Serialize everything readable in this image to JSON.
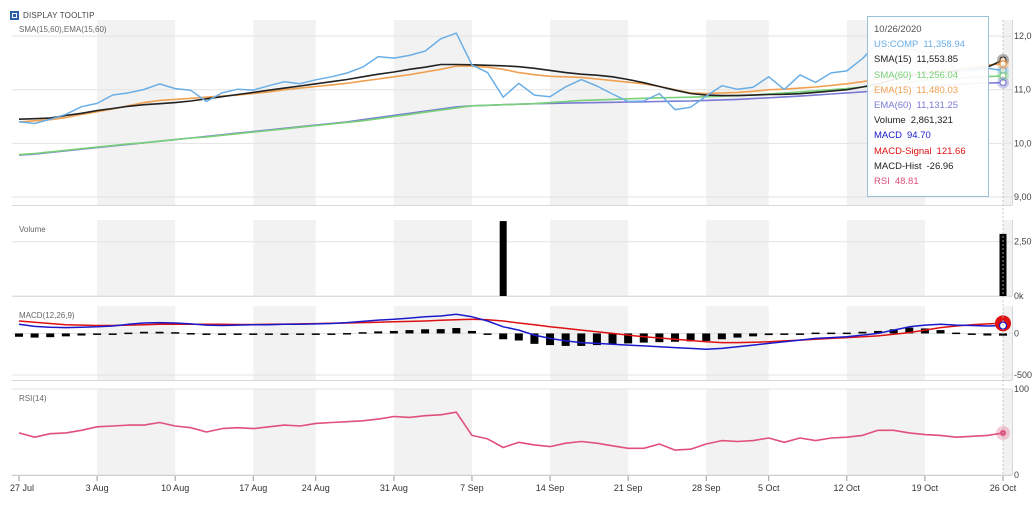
{
  "toolbar": {
    "display_tooltip_label": "DISPLAY TOOLTIP",
    "checked": true
  },
  "tooltip": {
    "date": "10/26/2020",
    "rows": [
      {
        "label": "US:COMP",
        "value": "11,358.94",
        "color": "#6aaee6"
      },
      {
        "label": "SMA(15)",
        "value": "11,553.85",
        "color": "#222222"
      },
      {
        "label": "SMA(60)",
        "value": "11,256.04",
        "color": "#78d178"
      },
      {
        "label": "EMA(15)",
        "value": "11,480.03",
        "color": "#f0a050"
      },
      {
        "label": "EMA(60)",
        "value": "11,131.25",
        "color": "#7b7bd6"
      },
      {
        "label": "Volume",
        "value": "2,861,321",
        "color": "#222222"
      },
      {
        "label": "MACD",
        "value": "94.70",
        "color": "#1a1acc"
      },
      {
        "label": "MACD-Signal",
        "value": "121.66",
        "color": "#dd1111"
      },
      {
        "label": "MACD-Hist",
        "value": "-26.96",
        "color": "#222222"
      },
      {
        "label": "RSI",
        "value": "48.81",
        "color": "#e0507a"
      }
    ]
  },
  "chart_data": {
    "type": "line",
    "x_ticks": [
      "27 Jul",
      "3 Aug",
      "10 Aug",
      "17 Aug",
      "24 Aug",
      "31 Aug",
      "7 Sep",
      "14 Sep",
      "21 Sep",
      "28 Sep",
      "5 Oct",
      "12 Oct",
      "19 Oct",
      "26 Oct"
    ],
    "price_panel": {
      "title": "SMA(15,60),EMA(15,60)",
      "y_ticks": [
        "12,0",
        "11,0",
        "10,0",
        "9,00"
      ],
      "y_tick_values": [
        12000,
        11000,
        10000,
        9000
      ],
      "ylim": [
        8850,
        12300
      ],
      "series": [
        {
          "name": "US:COMP",
          "color": "#6aaee6",
          "values": [
            10402,
            10370,
            10448,
            10542,
            10683,
            10745,
            10902,
            10940,
            11003,
            11108,
            11021,
            10989,
            10780,
            10940,
            11010,
            10993,
            11075,
            11150,
            11112,
            11185,
            11240,
            11311,
            11420,
            11618,
            11590,
            11640,
            11720,
            11950,
            12056,
            11459,
            11320,
            10860,
            11120,
            10900,
            10870,
            11055,
            11188,
            11070,
            10920,
            10780,
            10790,
            10930,
            10630,
            10673,
            10880,
            11075,
            11008,
            11046,
            11240,
            11006,
            11276,
            11136,
            11314,
            11350,
            11579,
            11876,
            11875,
            11758,
            11700,
            11700,
            11370,
            11360,
            11400,
            11359
          ]
        },
        {
          "name": "SMA(15)",
          "color": "#222222",
          "values": [
            10450,
            10460,
            10470,
            10520,
            10560,
            10610,
            10650,
            10690,
            10720,
            10740,
            10760,
            10790,
            10830,
            10870,
            10910,
            10950,
            10990,
            11030,
            11070,
            11110,
            11150,
            11190,
            11240,
            11290,
            11330,
            11380,
            11420,
            11470,
            11470,
            11465,
            11455,
            11445,
            11430,
            11400,
            11360,
            11320,
            11290,
            11270,
            11240,
            11190,
            11130,
            11060,
            10990,
            10930,
            10900,
            10890,
            10890,
            10900,
            10910,
            10915,
            10925,
            10950,
            10975,
            11000,
            11050,
            11110,
            11190,
            11260,
            11300,
            11320,
            11350,
            11380,
            11420,
            11554
          ]
        },
        {
          "name": "SMA(60)",
          "color": "#78d178",
          "values": [
            9790,
            9810,
            9840,
            9870,
            9900,
            9930,
            9960,
            9990,
            10010,
            10040,
            10070,
            10100,
            10120,
            10150,
            10180,
            10210,
            10240,
            10270,
            10300,
            10330,
            10360,
            10390,
            10420,
            10460,
            10500,
            10540,
            10580,
            10620,
            10660,
            10700,
            10710,
            10720,
            10730,
            10740,
            10760,
            10780,
            10800,
            10810,
            10820,
            10830,
            10840,
            10850,
            10855,
            10860,
            10870,
            10880,
            10890,
            10900,
            10920,
            10940,
            10960,
            10980,
            11000,
            11020,
            11050,
            11080,
            11110,
            11140,
            11170,
            11190,
            11210,
            11230,
            11245,
            11256
          ]
        },
        {
          "name": "EMA(15)",
          "color": "#f0a050",
          "values": [
            10400,
            10420,
            10440,
            10480,
            10540,
            10590,
            10640,
            10700,
            10760,
            10800,
            10820,
            10840,
            10860,
            10880,
            10900,
            10930,
            10960,
            11000,
            11030,
            11060,
            11090,
            11120,
            11160,
            11200,
            11240,
            11280,
            11330,
            11380,
            11440,
            11440,
            11420,
            11380,
            11320,
            11280,
            11250,
            11240,
            11230,
            11200,
            11170,
            11140,
            11110,
            11060,
            11000,
            10940,
            10930,
            10940,
            10950,
            10970,
            11000,
            11010,
            11030,
            11050,
            11080,
            11110,
            11150,
            11200,
            11250,
            11290,
            11330,
            11360,
            11380,
            11420,
            11460,
            11480
          ]
        },
        {
          "name": "EMA(60)",
          "color": "#7b7bd6",
          "values": [
            9780,
            9800,
            9830,
            9860,
            9890,
            9920,
            9950,
            9980,
            10010,
            10040,
            10070,
            10100,
            10130,
            10160,
            10190,
            10220,
            10250,
            10280,
            10310,
            10340,
            10370,
            10400,
            10440,
            10480,
            10520,
            10560,
            10600,
            10640,
            10680,
            10700,
            10710,
            10720,
            10730,
            10740,
            10745,
            10750,
            10755,
            10760,
            10765,
            10770,
            10775,
            10780,
            10785,
            10790,
            10800,
            10810,
            10820,
            10835,
            10850,
            10865,
            10880,
            10900,
            10920,
            10940,
            10960,
            10985,
            11010,
            11035,
            11060,
            11080,
            11100,
            11115,
            11125,
            11131
          ]
        }
      ]
    },
    "volume_panel": {
      "title": "Volume",
      "y_ticks": [
        "2,50",
        "0k"
      ],
      "y_tick_values": [
        2500000,
        0
      ],
      "ylim": [
        0,
        3500000
      ],
      "bars": [
        {
          "index": 31,
          "value": 3450000
        },
        {
          "index": 63,
          "value": 2861321
        }
      ]
    },
    "macd_panel": {
      "title": "MACD(12,26,9)",
      "y_ticks": [
        "0",
        "-500"
      ],
      "y_tick_values": [
        0,
        -500
      ],
      "ylim": [
        -560,
        330
      ],
      "series": [
        {
          "name": "MACD",
          "color": "#1a1acc",
          "values": [
            110,
            85,
            75,
            70,
            75,
            80,
            90,
            110,
            125,
            130,
            125,
            115,
            100,
            95,
            100,
            105,
            105,
            110,
            110,
            115,
            120,
            130,
            145,
            160,
            170,
            185,
            200,
            210,
            230,
            200,
            150,
            80,
            40,
            -20,
            -60,
            -90,
            -110,
            -120,
            -130,
            -140,
            -150,
            -160,
            -170,
            -180,
            -190,
            -180,
            -160,
            -140,
            -120,
            -100,
            -80,
            -60,
            -50,
            -40,
            -20,
            0,
            40,
            80,
            100,
            110,
            100,
            95,
            90,
            94.7
          ]
        },
        {
          "name": "MACD-Signal",
          "color": "#dd1111",
          "values": [
            150,
            135,
            120,
            105,
            100,
            95,
            95,
            100,
            105,
            110,
            110,
            110,
            110,
            110,
            108,
            108,
            110,
            112,
            115,
            118,
            122,
            125,
            130,
            135,
            140,
            145,
            150,
            158,
            165,
            170,
            165,
            150,
            125,
            105,
            80,
            60,
            40,
            20,
            0,
            -20,
            -40,
            -55,
            -70,
            -85,
            -100,
            -110,
            -110,
            -105,
            -100,
            -90,
            -80,
            -70,
            -60,
            -50,
            -40,
            -30,
            -10,
            10,
            40,
            70,
            90,
            105,
            115,
            121.66
          ]
        },
        {
          "name": "MACD-Hist",
          "color": "#000000",
          "values": [
            -40,
            -50,
            -45,
            -35,
            -25,
            -15,
            -5,
            10,
            20,
            20,
            15,
            5,
            -10,
            -15,
            -8,
            -3,
            -5,
            -2,
            -5,
            -3,
            -2,
            5,
            15,
            25,
            30,
            40,
            50,
            52,
            65,
            30,
            -15,
            -70,
            -85,
            -125,
            -140,
            -150,
            -150,
            -140,
            -130,
            -120,
            -110,
            -105,
            -100,
            -95,
            -90,
            -70,
            -50,
            -35,
            -20,
            -10,
            0,
            10,
            10,
            10,
            20,
            30,
            50,
            70,
            60,
            40,
            10,
            -10,
            -25,
            -26.96
          ]
        }
      ]
    },
    "rsi_panel": {
      "title": "RSI(14)",
      "y_ticks": [
        "100",
        "0"
      ],
      "y_tick_values": [
        100,
        0
      ],
      "ylim": [
        0,
        100
      ],
      "series": [
        {
          "name": "RSI",
          "color": "#e0507a",
          "values": [
            49,
            44,
            48,
            49,
            52,
            56,
            57,
            58,
            58,
            61,
            57,
            55,
            50,
            54,
            55,
            54,
            56,
            58,
            57,
            60,
            61,
            62,
            63,
            65,
            68,
            67,
            69,
            70,
            73,
            46,
            42,
            32,
            38,
            35,
            33,
            37,
            39,
            37,
            34,
            31,
            31,
            36,
            29,
            30,
            36,
            40,
            39,
            40,
            43,
            38,
            43,
            40,
            43,
            44,
            46,
            52,
            52,
            49,
            47,
            46,
            44,
            45,
            46,
            48.81
          ]
        }
      ]
    }
  }
}
